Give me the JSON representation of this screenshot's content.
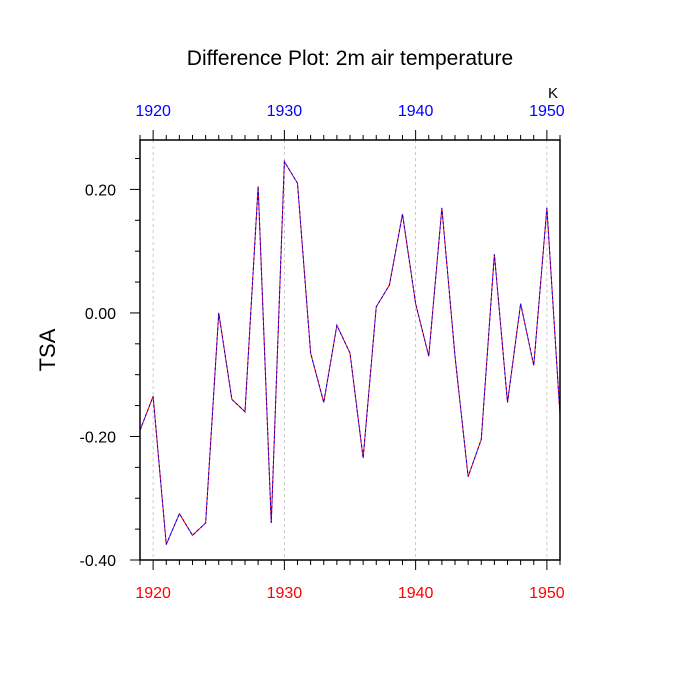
{
  "chart_data": {
    "type": "line",
    "title": "Difference Plot: 2m air temperature",
    "ylabel": "TSA",
    "xlabel": "",
    "units": "K",
    "xlim": [
      1919,
      1951
    ],
    "ylim": [
      -0.4,
      0.28
    ],
    "x_ticks_major": [
      1920,
      1930,
      1940,
      1950
    ],
    "x_tick_labels": [
      "1920",
      "1930",
      "1940",
      "1950"
    ],
    "y_ticks_major": [
      -0.4,
      -0.2,
      0.0,
      0.2
    ],
    "y_tick_labels": [
      "-0.40",
      "-0.20",
      "0.00",
      "0.20"
    ],
    "grid": {
      "vertical_dashed_at_major_x": true,
      "horizontal": false
    },
    "colors": {
      "bottom_tick_labels": "#ff0000",
      "top_tick_labels": "#0000ff",
      "series_a": "#ff0000",
      "series_b": "#0000ff",
      "grid": "#bbbbbb"
    },
    "x": [
      1919,
      1920,
      1921,
      1922,
      1923,
      1924,
      1925,
      1926,
      1927,
      1928,
      1929,
      1930,
      1931,
      1932,
      1933,
      1934,
      1935,
      1936,
      1937,
      1938,
      1939,
      1940,
      1941,
      1942,
      1943,
      1944,
      1945,
      1946,
      1947,
      1948,
      1949,
      1950,
      1951
    ],
    "series": [
      {
        "values": [
          -0.19,
          -0.135,
          -0.375,
          -0.325,
          -0.36,
          -0.34,
          0.0,
          -0.14,
          -0.16,
          0.205,
          -0.34,
          0.245,
          0.21,
          -0.065,
          -0.145,
          -0.02,
          -0.065,
          -0.235,
          0.01,
          0.045,
          0.16,
          0.015,
          -0.07,
          0.17,
          -0.07,
          -0.265,
          -0.205,
          0.095,
          -0.145,
          0.015,
          -0.085,
          0.17,
          -0.165
        ]
      },
      {
        "values": [
          -0.19,
          -0.135,
          -0.375,
          -0.325,
          -0.36,
          -0.34,
          0.0,
          -0.14,
          -0.16,
          0.205,
          -0.34,
          0.245,
          0.21,
          -0.065,
          -0.145,
          -0.02,
          -0.065,
          -0.235,
          0.01,
          0.045,
          0.16,
          0.015,
          -0.07,
          0.17,
          -0.07,
          -0.265,
          -0.205,
          0.095,
          -0.145,
          0.015,
          -0.085,
          0.17,
          -0.165
        ]
      }
    ]
  }
}
